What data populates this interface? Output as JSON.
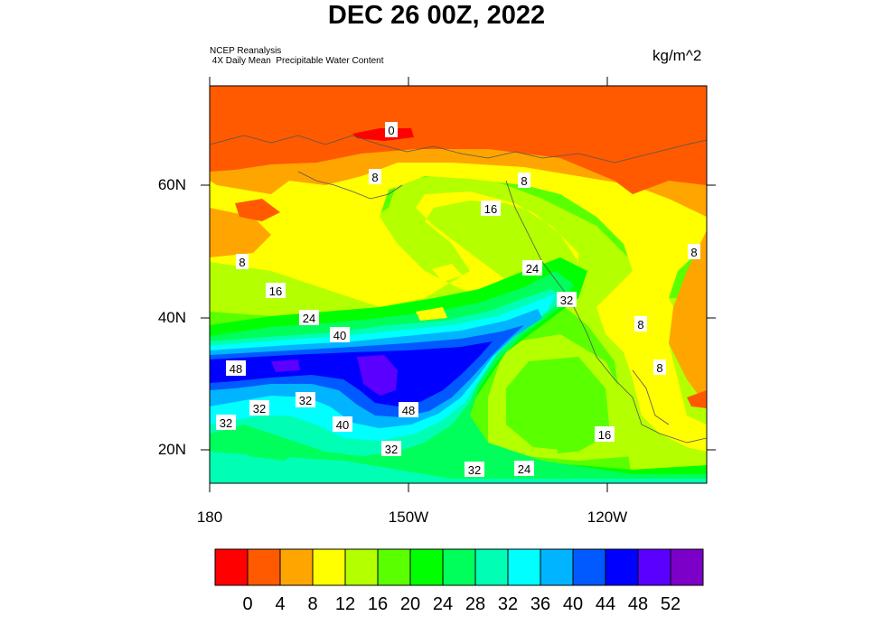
{
  "title": "DEC 26 00Z, 2022",
  "source_line1": "NCEP Reanalysis",
  "source_line2": " 4X Daily Mean  Precipitable Water Content",
  "units": "kg/m^2",
  "chart_data": {
    "type": "heatmap",
    "lat_ticks": [
      "60N",
      "40N",
      "20N"
    ],
    "lon_ticks": [
      "180",
      "150W",
      "120W"
    ],
    "colorbar": {
      "labels": [
        "0",
        "4",
        "8",
        "12",
        "16",
        "20",
        "24",
        "28",
        "32",
        "36",
        "40",
        "44",
        "48",
        "52"
      ],
      "colors": [
        "#ff0000",
        "#ff5a00",
        "#ffa500",
        "#ffff00",
        "#b4ff00",
        "#5aff00",
        "#00ff00",
        "#00ff5a",
        "#00ffb4",
        "#00ffff",
        "#00b4ff",
        "#005aff",
        "#0000ff",
        "#5a00ff",
        "#7d00c8"
      ]
    },
    "contour_labels": [
      "0",
      "8",
      "8",
      "16",
      "8",
      "8",
      "24",
      "16",
      "32",
      "24",
      "8",
      "40",
      "8",
      "48",
      "32",
      "32",
      "48",
      "40",
      "16",
      "32",
      "32",
      "32",
      "24"
    ]
  }
}
